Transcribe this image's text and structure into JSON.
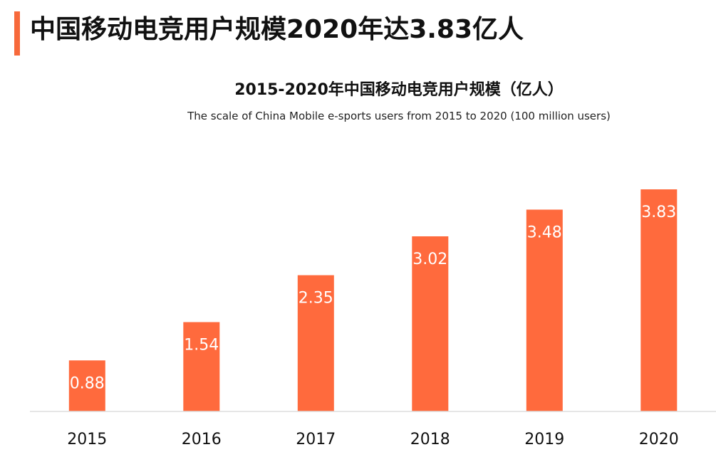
{
  "header": {
    "title": "中国移动电竞用户规模2020年达3.83亿人",
    "accent_color": "#F7693B"
  },
  "chart_data": {
    "type": "bar",
    "title": "2015-2020年中国移动电竞用户规模（亿人）",
    "subtitle": "The scale of China Mobile e-sports users from 2015 to 2020 (100 million users)",
    "categories": [
      "2015",
      "2016",
      "2017",
      "2018",
      "2019",
      "2020"
    ],
    "values": [
      0.88,
      1.54,
      2.35,
      3.02,
      3.48,
      3.83
    ],
    "value_labels": [
      "0.88",
      "1.54",
      "2.35",
      "3.02",
      "3.48",
      "3.83"
    ],
    "xlabel": "",
    "ylabel": "",
    "ylim": [
      0,
      3.83
    ],
    "grid": false,
    "legend": "none",
    "bar_color": "#FF6A3D",
    "baseline_color": "#DDDDDD"
  }
}
